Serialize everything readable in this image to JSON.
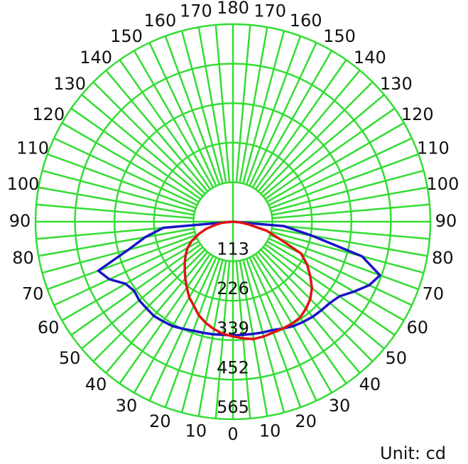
{
  "chart_data": {
    "type": "polar",
    "unit_label": "Unit: cd",
    "x": [
      -90,
      -85,
      -80,
      -75,
      -70,
      -65,
      -60,
      -55,
      -50,
      -45,
      -40,
      -35,
      -30,
      -25,
      -20,
      -15,
      -10,
      -5,
      0,
      5,
      10,
      15,
      20,
      25,
      30,
      35,
      40,
      45,
      50,
      55,
      60,
      65,
      70,
      75,
      80,
      85,
      90
    ],
    "series": [
      {
        "color": "#1a14c8",
        "values": [
          0,
          200,
          255,
          310,
          410,
          390,
          355,
          345,
          350,
          350,
          352,
          348,
          345,
          338,
          332,
          329,
          327,
          325,
          325,
          325,
          326,
          328,
          330,
          337,
          345,
          350,
          355,
          358,
          362,
          372,
          400,
          430,
          448,
          382,
          230,
          147,
          0
        ]
      },
      {
        "color": "#e01414",
        "values": [
          0,
          30,
          50,
          80,
          105,
          130,
          150,
          165,
          180,
          195,
          212,
          230,
          250,
          265,
          285,
          300,
          312,
          322,
          328,
          335,
          341,
          340,
          337,
          337,
          337,
          335,
          325,
          313,
          295,
          270,
          245,
          215,
          140,
          100,
          45,
          20,
          0
        ]
      }
    ],
    "rlim": [
      0,
      565
    ],
    "rticks": [
      113,
      226,
      339,
      452,
      565
    ],
    "xticks_right": [
      0,
      10,
      20,
      30,
      40,
      50,
      60,
      70,
      80,
      90,
      100,
      110,
      120,
      130,
      140,
      150,
      160,
      170,
      180
    ],
    "xticks_left": [
      10,
      20,
      30,
      40,
      50,
      60,
      70,
      80,
      90,
      100,
      110,
      120,
      130,
      140,
      150,
      160,
      170
    ],
    "grid_color": "#33dd33"
  }
}
